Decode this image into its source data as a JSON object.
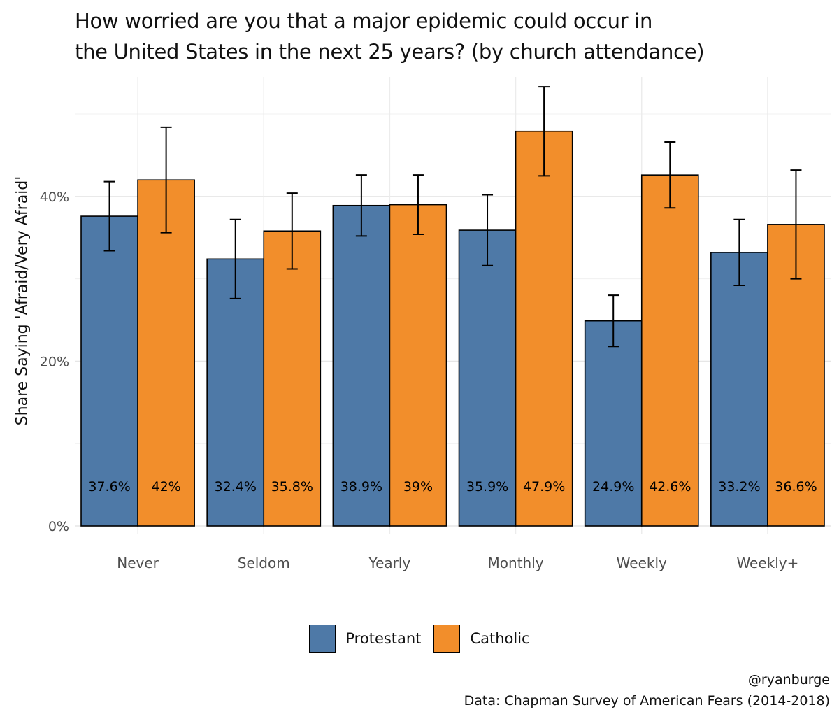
{
  "chart_data": {
    "type": "bar",
    "title": [
      "How worried are you that a major epidemic could occur in",
      "the United States in the next 25 years? (by church attendance)"
    ],
    "xlabel": "",
    "ylabel": "Share Saying 'Afraid/Very Afraid'",
    "ylim": [
      0,
      0.545
    ],
    "yticks": [
      0,
      0.2,
      0.4
    ],
    "ytick_labels": [
      "0%",
      "20%",
      "40%"
    ],
    "categories": [
      "Never",
      "Seldom",
      "Yearly",
      "Monthly",
      "Weekly",
      "Weekly+"
    ],
    "series": [
      {
        "name": "Protestant",
        "color": "#4E79A7",
        "values": [
          0.376,
          0.324,
          0.389,
          0.359,
          0.249,
          0.332
        ],
        "labels": [
          "37.6%",
          "32.4%",
          "38.9%",
          "35.9%",
          "24.9%",
          "33.2%"
        ],
        "error_low": [
          0.334,
          0.276,
          0.352,
          0.316,
          0.218,
          0.292
        ],
        "error_high": [
          0.418,
          0.372,
          0.426,
          0.402,
          0.28,
          0.372
        ]
      },
      {
        "name": "Catholic",
        "color": "#F28E2B",
        "values": [
          0.42,
          0.358,
          0.39,
          0.479,
          0.426,
          0.366
        ],
        "labels": [
          "42%",
          "35.8%",
          "39%",
          "47.9%",
          "42.6%",
          "36.6%"
        ],
        "error_low": [
          0.356,
          0.312,
          0.354,
          0.425,
          0.386,
          0.3
        ],
        "error_high": [
          0.484,
          0.404,
          0.426,
          0.533,
          0.466,
          0.432
        ]
      }
    ],
    "grid": true,
    "legend": "bottom"
  },
  "caption": {
    "handle": "@ryanburge",
    "source": "Data: Chapman Survey of American Fears (2014-2018)"
  }
}
